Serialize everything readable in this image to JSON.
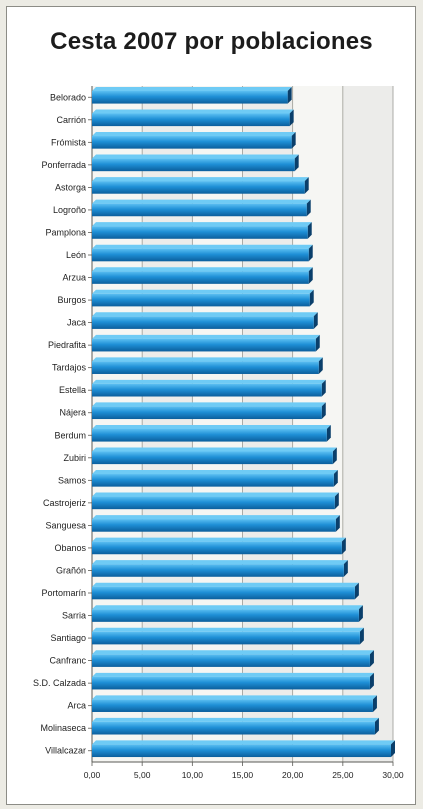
{
  "chart_data": {
    "type": "bar",
    "orientation": "horizontal",
    "title": "Cesta 2007 por poblaciones",
    "xlabel": "",
    "ylabel": "",
    "xlim": [
      0,
      30
    ],
    "x_ticks": [
      "0,00",
      "5,00",
      "10,00",
      "15,00",
      "20,00",
      "25,00",
      "30,00"
    ],
    "grid": true,
    "bar_color": "#1e8fd6",
    "categories": [
      "Belorado",
      "Carrión",
      "Frómista",
      "Ponferrada",
      "Astorga",
      "Logroño",
      "Pamplona",
      "León",
      "Arzua",
      "Burgos",
      "Jaca",
      "Piedrafita",
      "Tardajos",
      "Estella",
      "Nájera",
      "Berdum",
      "Zubiri",
      "Samos",
      "Castrojeriz",
      "Sanguesa",
      "Obanos",
      "Grañón",
      "Portomarín",
      "Sarria",
      "Santiago",
      "Canfranc",
      "S.D. Calzada",
      "Arca",
      "Molinaseca",
      "Villalcazar"
    ],
    "values": [
      19.5,
      19.7,
      19.9,
      20.2,
      21.2,
      21.4,
      21.5,
      21.6,
      21.6,
      21.7,
      22.1,
      22.3,
      22.6,
      22.9,
      22.9,
      23.4,
      24.0,
      24.1,
      24.2,
      24.3,
      24.9,
      25.1,
      26.2,
      26.6,
      26.7,
      27.7,
      27.7,
      28.0,
      28.2,
      29.8
    ]
  }
}
